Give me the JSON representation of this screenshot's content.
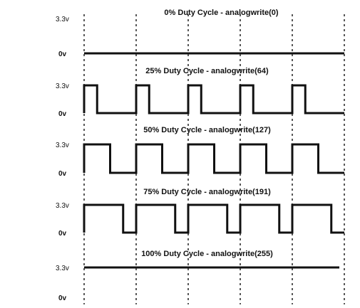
{
  "panels": [
    {
      "title": "0% Duty Cycle - analogwrite(0)",
      "duty": 0,
      "high_label": "3.3v",
      "low_label": "0v"
    },
    {
      "title": "25% Duty Cycle - analogwrite(64)",
      "duty": 0.25,
      "high_label": "3.3v",
      "low_label": "0v"
    },
    {
      "title": "50% Duty Cycle - analogwrite(127)",
      "duty": 0.5,
      "high_label": "3.3v",
      "low_label": "0v"
    },
    {
      "title": "75% Duty Cycle - analogwrite(191)",
      "duty": 0.75,
      "high_label": "3.3v",
      "low_label": "0v"
    },
    {
      "title": "100% Duty Cycle - analogwrite(255)",
      "duty": 1,
      "high_label": "3.3v",
      "low_label": "0v"
    }
  ],
  "periods_shown": 5
}
